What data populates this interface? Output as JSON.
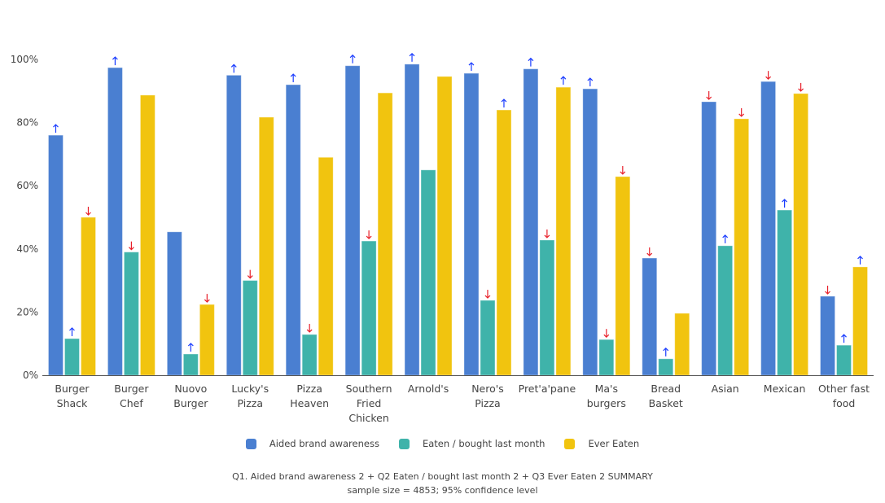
{
  "chart_data": {
    "type": "bar",
    "title": "",
    "xlabel": "",
    "ylabel": "",
    "ylim": [
      0,
      100
    ],
    "yticks": [
      "0%",
      "20%",
      "40%",
      "60%",
      "80%",
      "100%"
    ],
    "ytick_values": [
      0,
      20,
      40,
      60,
      80,
      100
    ],
    "grid": false,
    "legend_position": "bottom",
    "categories": [
      [
        "Burger",
        "Shack"
      ],
      [
        "Burger",
        "Chef"
      ],
      [
        "Nuovo",
        "Burger"
      ],
      [
        "Lucky's",
        "Pizza"
      ],
      [
        "Pizza",
        "Heaven"
      ],
      [
        "Southern",
        "Fried",
        "Chicken"
      ],
      [
        "Arnold's"
      ],
      [
        "Nero's",
        "Pizza"
      ],
      [
        "Pret'a'pane"
      ],
      [
        "Ma's",
        "burgers"
      ],
      [
        "Bread",
        "Basket"
      ],
      [
        "Asian"
      ],
      [
        "Mexican"
      ],
      [
        "Other fast",
        "food"
      ]
    ],
    "series": [
      {
        "name": "Aided brand awareness",
        "color": "#4a7fd1",
        "values": [
          76,
          97.4,
          45.4,
          95,
          92,
          98,
          98.5,
          95.6,
          97,
          90.7,
          37.1,
          86.6,
          93,
          25
        ],
        "significance": [
          "up",
          "up",
          "",
          "up",
          "up",
          "up",
          "up",
          "up",
          "up",
          "up",
          "down",
          "down",
          "down",
          "down"
        ]
      },
      {
        "name": "Eaten / bought last month",
        "color": "#3fb3aa",
        "values": [
          11.6,
          39,
          6.7,
          30,
          12.9,
          42.5,
          65,
          23.7,
          42.8,
          11.3,
          5.2,
          41,
          52.3,
          9.5
        ],
        "significance": [
          "up",
          "down",
          "up",
          "down",
          "down",
          "down",
          "",
          "down",
          "down",
          "down",
          "up",
          "up",
          "up",
          "up"
        ]
      },
      {
        "name": "Ever Eaten",
        "color": "#f1c40f",
        "values": [
          50,
          88.7,
          22.4,
          81.7,
          69,
          89.4,
          94.6,
          84,
          91.2,
          62.9,
          19.6,
          81.2,
          89.2,
          34.3
        ],
        "significance": [
          "down",
          "",
          "down",
          "",
          "",
          "",
          "",
          "up",
          "up",
          "down",
          "",
          "down",
          "down",
          "up"
        ]
      }
    ],
    "significance_colors": {
      "up": "#1a3cff",
      "down": "#e8202a"
    },
    "annotations": [
      "Q1. Aided brand awareness 2 + Q2 Eaten / bought last month 2 + Q3 Ever Eaten 2 SUMMARY",
      "sample size = 4853; 95% confidence level"
    ]
  }
}
